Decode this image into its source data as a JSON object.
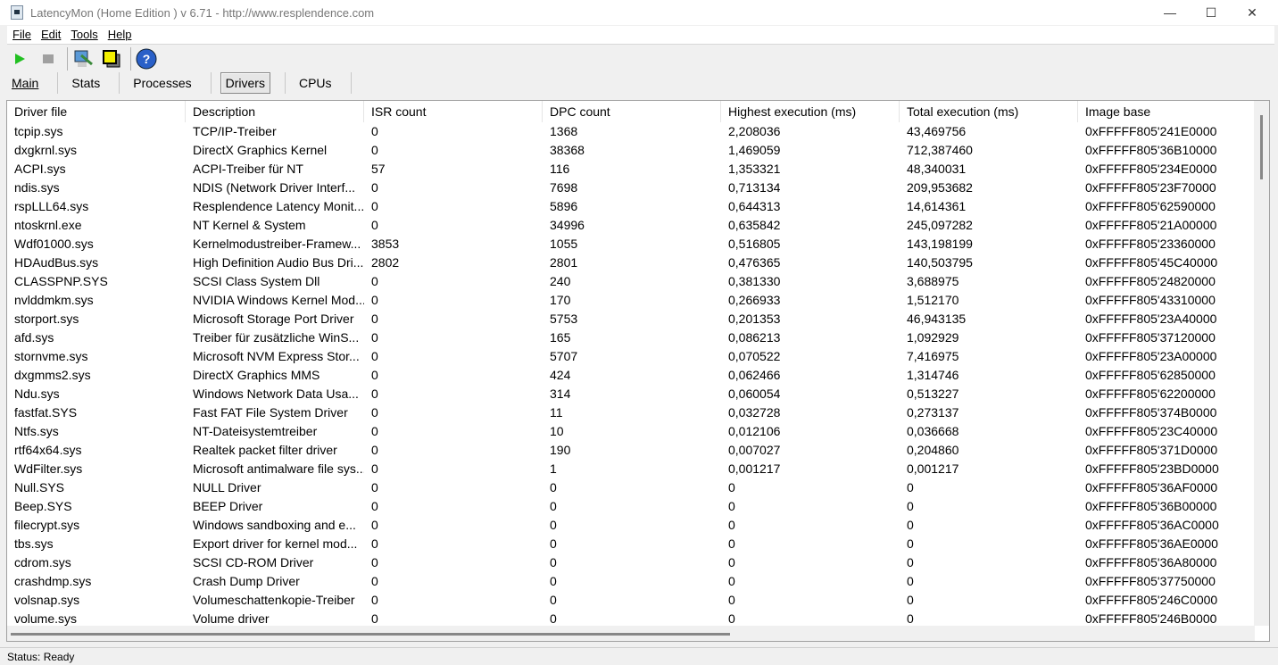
{
  "window": {
    "title": "LatencyMon  (Home Edition )  v 6.71 - http://www.resplendence.com",
    "minimize": "—",
    "maximize": "☐",
    "close": "✕"
  },
  "menu": [
    "File",
    "Edit",
    "Tools",
    "Help"
  ],
  "toolbar": {
    "icons": [
      "play-icon",
      "stop-icon",
      "report-icon",
      "windows-icon",
      "help-icon"
    ],
    "accent_play": "#22c022",
    "help_color": "#2a60c8"
  },
  "tabs": [
    "Main",
    "Stats",
    "Processes",
    "Drivers",
    "CPUs"
  ],
  "active_tab": "Drivers",
  "table": {
    "columns": [
      "Driver file",
      "Description",
      "ISR count",
      "DPC count",
      "Highest execution (ms)",
      "Total execution (ms)",
      "Image base"
    ],
    "rows": [
      [
        "tcpip.sys",
        "TCP/IP-Treiber",
        "0",
        "1368",
        "2,208036",
        "43,469756",
        "0xFFFFF805'241E0000"
      ],
      [
        "dxgkrnl.sys",
        "DirectX Graphics Kernel",
        "0",
        "38368",
        "1,469059",
        "712,387460",
        "0xFFFFF805'36B10000"
      ],
      [
        "ACPI.sys",
        "ACPI-Treiber für NT",
        "57",
        "116",
        "1,353321",
        "48,340031",
        "0xFFFFF805'234E0000"
      ],
      [
        "ndis.sys",
        "NDIS (Network Driver Interf...",
        "0",
        "7698",
        "0,713134",
        "209,953682",
        "0xFFFFF805'23F70000"
      ],
      [
        "rspLLL64.sys",
        "Resplendence Latency Monit...",
        "0",
        "5896",
        "0,644313",
        "14,614361",
        "0xFFFFF805'62590000"
      ],
      [
        "ntoskrnl.exe",
        "NT Kernel & System",
        "0",
        "34996",
        "0,635842",
        "245,097282",
        "0xFFFFF805'21A00000"
      ],
      [
        "Wdf01000.sys",
        "Kernelmodustreiber-Framew...",
        "3853",
        "1055",
        "0,516805",
        "143,198199",
        "0xFFFFF805'23360000"
      ],
      [
        "HDAudBus.sys",
        "High Definition Audio Bus Dri...",
        "2802",
        "2801",
        "0,476365",
        "140,503795",
        "0xFFFFF805'45C40000"
      ],
      [
        "CLASSPNP.SYS",
        "SCSI Class System Dll",
        "0",
        "240",
        "0,381330",
        "3,688975",
        "0xFFFFF805'24820000"
      ],
      [
        "nvlddmkm.sys",
        "NVIDIA Windows Kernel Mod...",
        "0",
        "170",
        "0,266933",
        "1,512170",
        "0xFFFFF805'43310000"
      ],
      [
        "storport.sys",
        "Microsoft Storage Port Driver",
        "0",
        "5753",
        "0,201353",
        "46,943135",
        "0xFFFFF805'23A40000"
      ],
      [
        "afd.sys",
        "Treiber für zusätzliche WinS...",
        "0",
        "165",
        "0,086213",
        "1,092929",
        "0xFFFFF805'37120000"
      ],
      [
        "stornvme.sys",
        "Microsoft NVM Express Stor...",
        "0",
        "5707",
        "0,070522",
        "7,416975",
        "0xFFFFF805'23A00000"
      ],
      [
        "dxgmms2.sys",
        "DirectX Graphics MMS",
        "0",
        "424",
        "0,062466",
        "1,314746",
        "0xFFFFF805'62850000"
      ],
      [
        "Ndu.sys",
        "Windows Network Data Usa...",
        "0",
        "314",
        "0,060054",
        "0,513227",
        "0xFFFFF805'62200000"
      ],
      [
        "fastfat.SYS",
        "Fast FAT File System Driver",
        "0",
        "11",
        "0,032728",
        "0,273137",
        "0xFFFFF805'374B0000"
      ],
      [
        "Ntfs.sys",
        "NT-Dateisystemtreiber",
        "0",
        "10",
        "0,012106",
        "0,036668",
        "0xFFFFF805'23C40000"
      ],
      [
        "rtf64x64.sys",
        "Realtek packet filter driver",
        "0",
        "190",
        "0,007027",
        "0,204860",
        "0xFFFFF805'371D0000"
      ],
      [
        "WdFilter.sys",
        "Microsoft antimalware file sys...",
        "0",
        "1",
        "0,001217",
        "0,001217",
        "0xFFFFF805'23BD0000"
      ],
      [
        "Null.SYS",
        "NULL Driver",
        "0",
        "0",
        "0",
        "0",
        "0xFFFFF805'36AF0000"
      ],
      [
        "Beep.SYS",
        "BEEP Driver",
        "0",
        "0",
        "0",
        "0",
        "0xFFFFF805'36B00000"
      ],
      [
        "filecrypt.sys",
        "Windows sandboxing and e...",
        "0",
        "0",
        "0",
        "0",
        "0xFFFFF805'36AC0000"
      ],
      [
        "tbs.sys",
        "Export driver for kernel mod...",
        "0",
        "0",
        "0",
        "0",
        "0xFFFFF805'36AE0000"
      ],
      [
        "cdrom.sys",
        "SCSI CD-ROM Driver",
        "0",
        "0",
        "0",
        "0",
        "0xFFFFF805'36A80000"
      ],
      [
        "crashdmp.sys",
        "Crash Dump Driver",
        "0",
        "0",
        "0",
        "0",
        "0xFFFFF805'37750000"
      ],
      [
        "volsnap.sys",
        "Volumeschattenkopie-Treiber",
        "0",
        "0",
        "0",
        "0",
        "0xFFFFF805'246C0000"
      ],
      [
        "volume.sys",
        "Volume driver",
        "0",
        "0",
        "0",
        "0",
        "0xFFFFF805'246B0000"
      ]
    ]
  },
  "status": "Status: Ready"
}
